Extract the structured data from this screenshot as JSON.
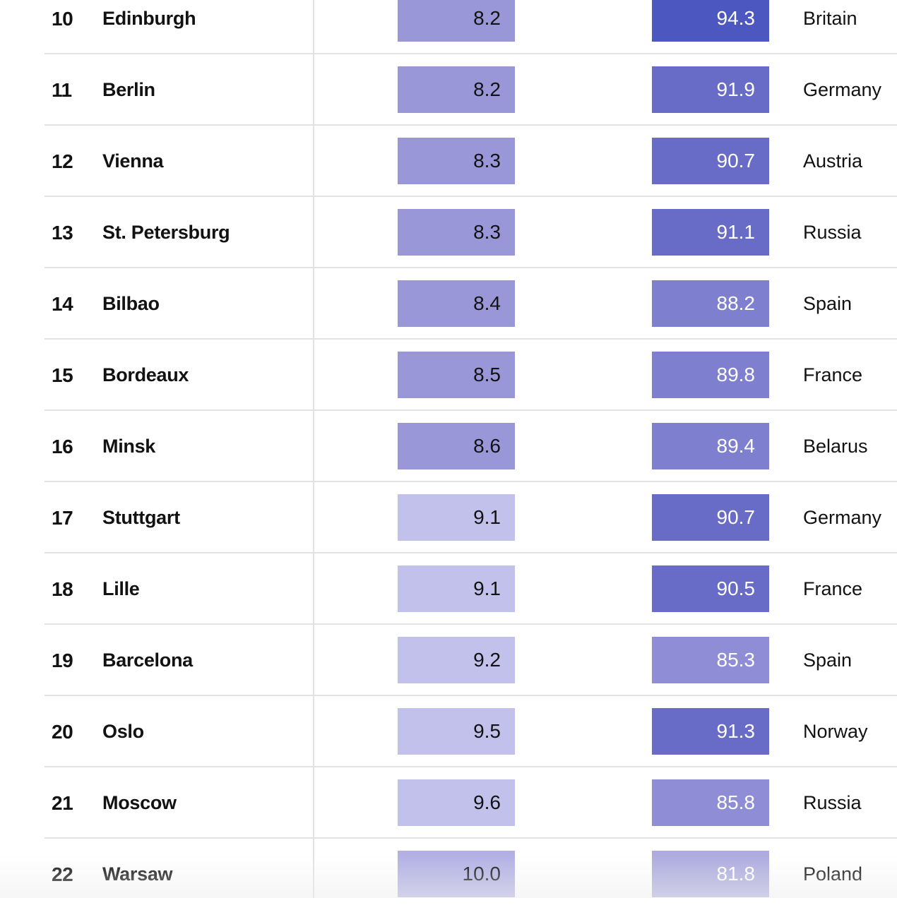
{
  "chart_data": {
    "type": "table",
    "columns": [
      "rank",
      "city",
      "value_1",
      "value_2",
      "country"
    ],
    "rows": [
      {
        "rank": "10",
        "city": "Edinburgh",
        "value_1": "8.2",
        "value_2": "94.3",
        "country": "Britain"
      },
      {
        "rank": "11",
        "city": "Berlin",
        "value_1": "8.2",
        "value_2": "91.9",
        "country": "Germany"
      },
      {
        "rank": "12",
        "city": "Vienna",
        "value_1": "8.3",
        "value_2": "90.7",
        "country": "Austria"
      },
      {
        "rank": "13",
        "city": "St. Petersburg",
        "value_1": "8.3",
        "value_2": "91.1",
        "country": "Russia"
      },
      {
        "rank": "14",
        "city": "Bilbao",
        "value_1": "8.4",
        "value_2": "88.2",
        "country": "Spain"
      },
      {
        "rank": "15",
        "city": "Bordeaux",
        "value_1": "8.5",
        "value_2": "89.8",
        "country": "France"
      },
      {
        "rank": "16",
        "city": "Minsk",
        "value_1": "8.6",
        "value_2": "89.4",
        "country": "Belarus"
      },
      {
        "rank": "17",
        "city": "Stuttgart",
        "value_1": "9.1",
        "value_2": "90.7",
        "country": "Germany"
      },
      {
        "rank": "18",
        "city": "Lille",
        "value_1": "9.1",
        "value_2": "90.5",
        "country": "France"
      },
      {
        "rank": "19",
        "city": "Barcelona",
        "value_1": "9.2",
        "value_2": "85.3",
        "country": "Spain"
      },
      {
        "rank": "20",
        "city": "Oslo",
        "value_1": "9.5",
        "value_2": "91.3",
        "country": "Norway"
      },
      {
        "rank": "21",
        "city": "Moscow",
        "value_1": "9.6",
        "value_2": "85.8",
        "country": "Russia"
      },
      {
        "rank": "22",
        "city": "Warsaw",
        "value_1": "10.0",
        "value_2": "81.8",
        "country": "Poland"
      }
    ]
  },
  "colors": {
    "value_1_scale": {
      "8.x": "#9a97d9",
      "9.x": "#c2c1eb",
      "10.x": "#b3b1e4"
    },
    "value_2_scale": {
      "94+": "#4c58bf",
      "90-94": "#686cc7",
      "87.5-90": "#7e80cf",
      "85-87.5": "#8f8dd6",
      "below 85": "#aeacdf"
    },
    "text_on_light": "#121212",
    "text_on_dark": "#ffffff",
    "row_rule": "#e2e2e2"
  }
}
